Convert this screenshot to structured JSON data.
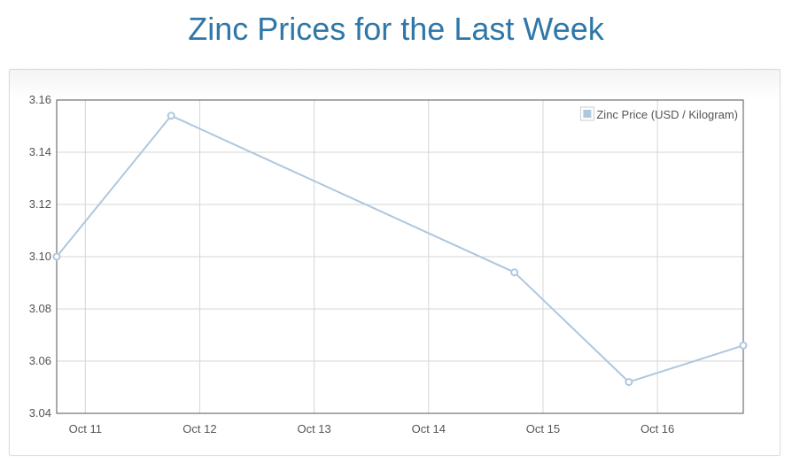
{
  "page": {
    "title": "Zinc Prices for the Last Week"
  },
  "colors": {
    "title": "#2f77a8",
    "series": "#afc7de",
    "grid": "#d6d6d6",
    "axis_frame": "#545454",
    "tick_text": "#545454"
  },
  "chart_data": {
    "type": "line",
    "title": "",
    "xlabel": "",
    "ylabel": "",
    "x_tick_labels": [
      "Oct 11",
      "Oct 12",
      "Oct 13",
      "Oct 14",
      "Oct 15",
      "Oct 16"
    ],
    "y_tick_labels": [
      "3.04",
      "3.06",
      "3.08",
      "3.10",
      "3.12",
      "3.14",
      "3.16"
    ],
    "ylim": [
      3.04,
      3.16
    ],
    "xlim": [
      "2013-10-10T18:00",
      "2013-10-16T18:00"
    ],
    "grid": true,
    "legend": "top-right",
    "series": [
      {
        "name": "Zinc Price (USD / Kilogram)",
        "points": [
          {
            "x": "2013-10-10T18:00",
            "y": 3.1
          },
          {
            "x": "2013-10-11T18:00",
            "y": 3.154
          },
          {
            "x": "2013-10-14T18:00",
            "y": 3.094
          },
          {
            "x": "2013-10-15T18:00",
            "y": 3.052
          },
          {
            "x": "2013-10-16T18:00",
            "y": 3.066
          }
        ]
      }
    ]
  }
}
